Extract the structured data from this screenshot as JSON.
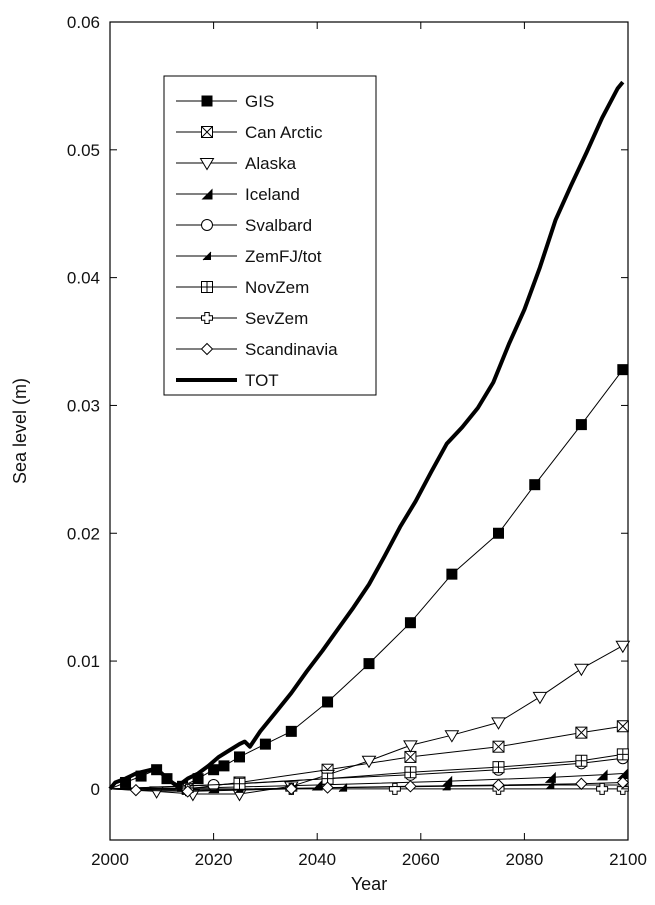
{
  "chart_data": {
    "type": "line",
    "title": "",
    "xlabel": "Year",
    "ylabel": "Sea level (m)",
    "xlim": [
      2000,
      2100
    ],
    "ylim": [
      -0.004,
      0.06
    ],
    "xticks": [
      2000,
      2020,
      2040,
      2060,
      2080,
      2100
    ],
    "yticks": [
      0,
      0.01,
      0.02,
      0.03,
      0.04,
      0.05,
      0.06
    ],
    "xtick_labels": [
      "2000",
      "2020",
      "2040",
      "2060",
      "2080",
      "2100"
    ],
    "ytick_labels": [
      "0",
      "0.01",
      "0.02",
      "0.03",
      "0.04",
      "0.05",
      "0.06"
    ],
    "grid": false,
    "legend_position": "top-left",
    "series": [
      {
        "name": "GIS",
        "marker": "filled-square",
        "line_style": "thin",
        "x": [
          2000,
          2003,
          2006,
          2009,
          2011,
          2014,
          2017,
          2020,
          2022,
          2025,
          2030,
          2035,
          2042,
          2050,
          2058,
          2066,
          2075,
          2082,
          2091,
          2099
        ],
        "y": [
          0,
          0.0005,
          0.001,
          0.0015,
          0.0008,
          0.0002,
          0.0008,
          0.0015,
          0.0018,
          0.0025,
          0.0035,
          0.0045,
          0.0068,
          0.0098,
          0.013,
          0.0168,
          0.02,
          0.0238,
          0.0285,
          0.0328
        ]
      },
      {
        "name": "Can Arctic",
        "marker": "x-square",
        "line_style": "thin",
        "x": [
          2000,
          2015,
          2025,
          2042,
          2058,
          2075,
          2091,
          2099
        ],
        "y": [
          0,
          0,
          0.0005,
          0.0015,
          0.0025,
          0.0033,
          0.0044,
          0.0049
        ]
      },
      {
        "name": "Alaska",
        "marker": "open-triangle-down",
        "line_style": "thin",
        "x": [
          2000,
          2009,
          2016,
          2025,
          2035,
          2042,
          2050,
          2058,
          2066,
          2075,
          2083,
          2091,
          2099
        ],
        "y": [
          0,
          -0.0002,
          -0.0004,
          -0.0004,
          0.0002,
          0.0011,
          0.0022,
          0.0034,
          0.0042,
          0.0052,
          0.0072,
          0.0094,
          0.0112
        ]
      },
      {
        "name": "Iceland",
        "marker": "half-filled-triangle",
        "line_style": "thin",
        "x": [
          2000,
          2020,
          2040,
          2065,
          2085,
          2095,
          2099
        ],
        "y": [
          0,
          0.0001,
          0.0003,
          0.0006,
          0.0009,
          0.0011,
          0.0012
        ]
      },
      {
        "name": "Svalbard",
        "marker": "open-circle",
        "line_style": "thin",
        "x": [
          2000,
          2020,
          2042,
          2058,
          2075,
          2091,
          2099
        ],
        "y": [
          0,
          0.0003,
          0.0008,
          0.0011,
          0.0015,
          0.002,
          0.0024
        ]
      },
      {
        "name": "ZemFJ/tot",
        "marker": "half-filled-small-triangle",
        "line_style": "thin",
        "x": [
          2000,
          2025,
          2045,
          2065,
          2085,
          2099
        ],
        "y": [
          0,
          0,
          0.0001,
          0.0002,
          0.0003,
          0.0003
        ]
      },
      {
        "name": "NovZem",
        "marker": "plus-square",
        "line_style": "thin",
        "x": [
          2000,
          2025,
          2042,
          2058,
          2075,
          2091,
          2099
        ],
        "y": [
          0,
          0.0004,
          0.0008,
          0.0013,
          0.0017,
          0.0022,
          0.0027
        ]
      },
      {
        "name": "SevZem",
        "marker": "open-cross",
        "line_style": "thin",
        "x": [
          2000,
          2015,
          2035,
          2055,
          2075,
          2095,
          2099
        ],
        "y": [
          0,
          -0.0001,
          0,
          0,
          0,
          0,
          0
        ]
      },
      {
        "name": "Scandinavia",
        "marker": "open-diamond",
        "line_style": "thin",
        "x": [
          2000,
          2005,
          2015,
          2035,
          2042,
          2058,
          2075,
          2091,
          2099
        ],
        "y": [
          0,
          -0.0001,
          -0.0002,
          0,
          0.0001,
          0.0002,
          0.0003,
          0.0004,
          0.0005
        ]
      },
      {
        "name": "TOT",
        "marker": "none",
        "line_style": "thick",
        "x": [
          2000,
          2001,
          2003,
          2005,
          2007,
          2009,
          2010,
          2012,
          2013,
          2015,
          2017,
          2019,
          2021,
          2023,
          2025,
          2026,
          2027,
          2029,
          2032,
          2035,
          2038,
          2041,
          2044,
          2047,
          2050,
          2053,
          2056,
          2059,
          2062,
          2065,
          2068,
          2071,
          2074,
          2077,
          2080,
          2083,
          2086,
          2089,
          2092,
          2095,
          2098,
          2099
        ],
        "y": [
          0,
          0.0005,
          0.0008,
          0.0012,
          0.0014,
          0.0016,
          0.0012,
          0.0005,
          0.0002,
          0.0008,
          0.0012,
          0.0018,
          0.0025,
          0.003,
          0.0035,
          0.0037,
          0.0033,
          0.0045,
          0.006,
          0.0075,
          0.0092,
          0.0108,
          0.0125,
          0.0142,
          0.016,
          0.0182,
          0.0205,
          0.0225,
          0.0248,
          0.027,
          0.0283,
          0.0298,
          0.0318,
          0.0348,
          0.0375,
          0.0408,
          0.0445,
          0.0472,
          0.0498,
          0.0525,
          0.0548,
          0.0553
        ]
      }
    ]
  }
}
